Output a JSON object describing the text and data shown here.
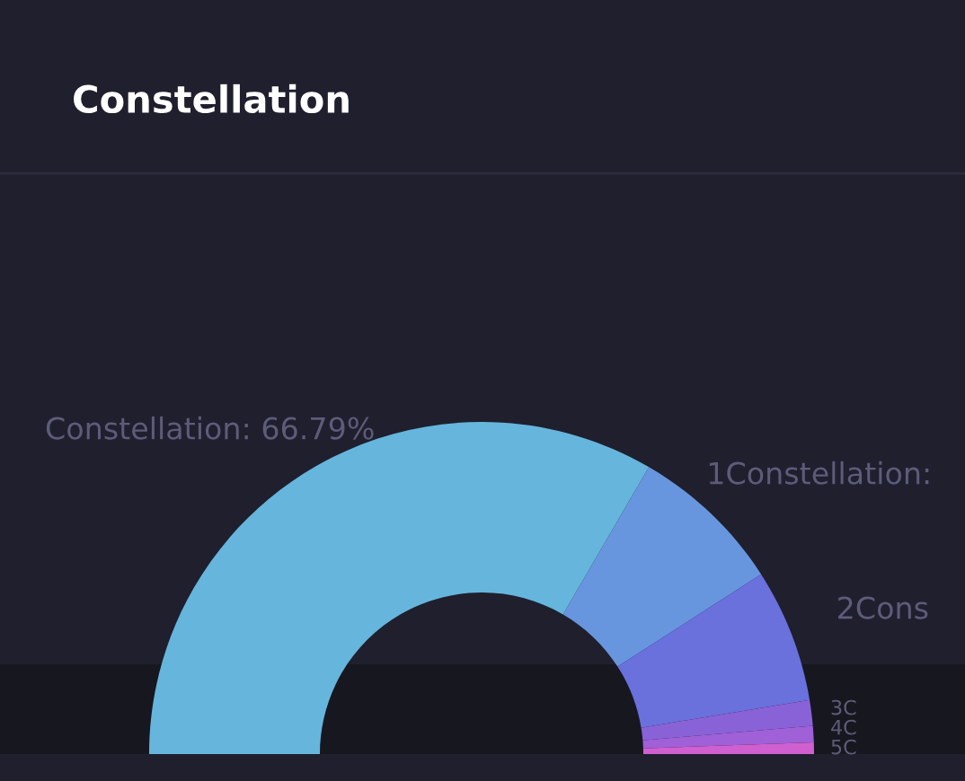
{
  "chart_data": {
    "type": "donut",
    "title": "Constellation",
    "categories": [
      "Constellation",
      "1Constellation",
      "2Cons",
      "3C",
      "4C",
      "5C"
    ],
    "values": [
      66.79,
      15,
      13,
      2.5,
      1.6,
      1.11
    ],
    "value_labels": [
      ": 66.79%",
      ":",
      null,
      null,
      null,
      null
    ],
    "colors": [
      "#66b5dc",
      "#6896de",
      "#6a70dc",
      "#8a62d8",
      "#a060d8",
      "#d060d0"
    ]
  }
}
